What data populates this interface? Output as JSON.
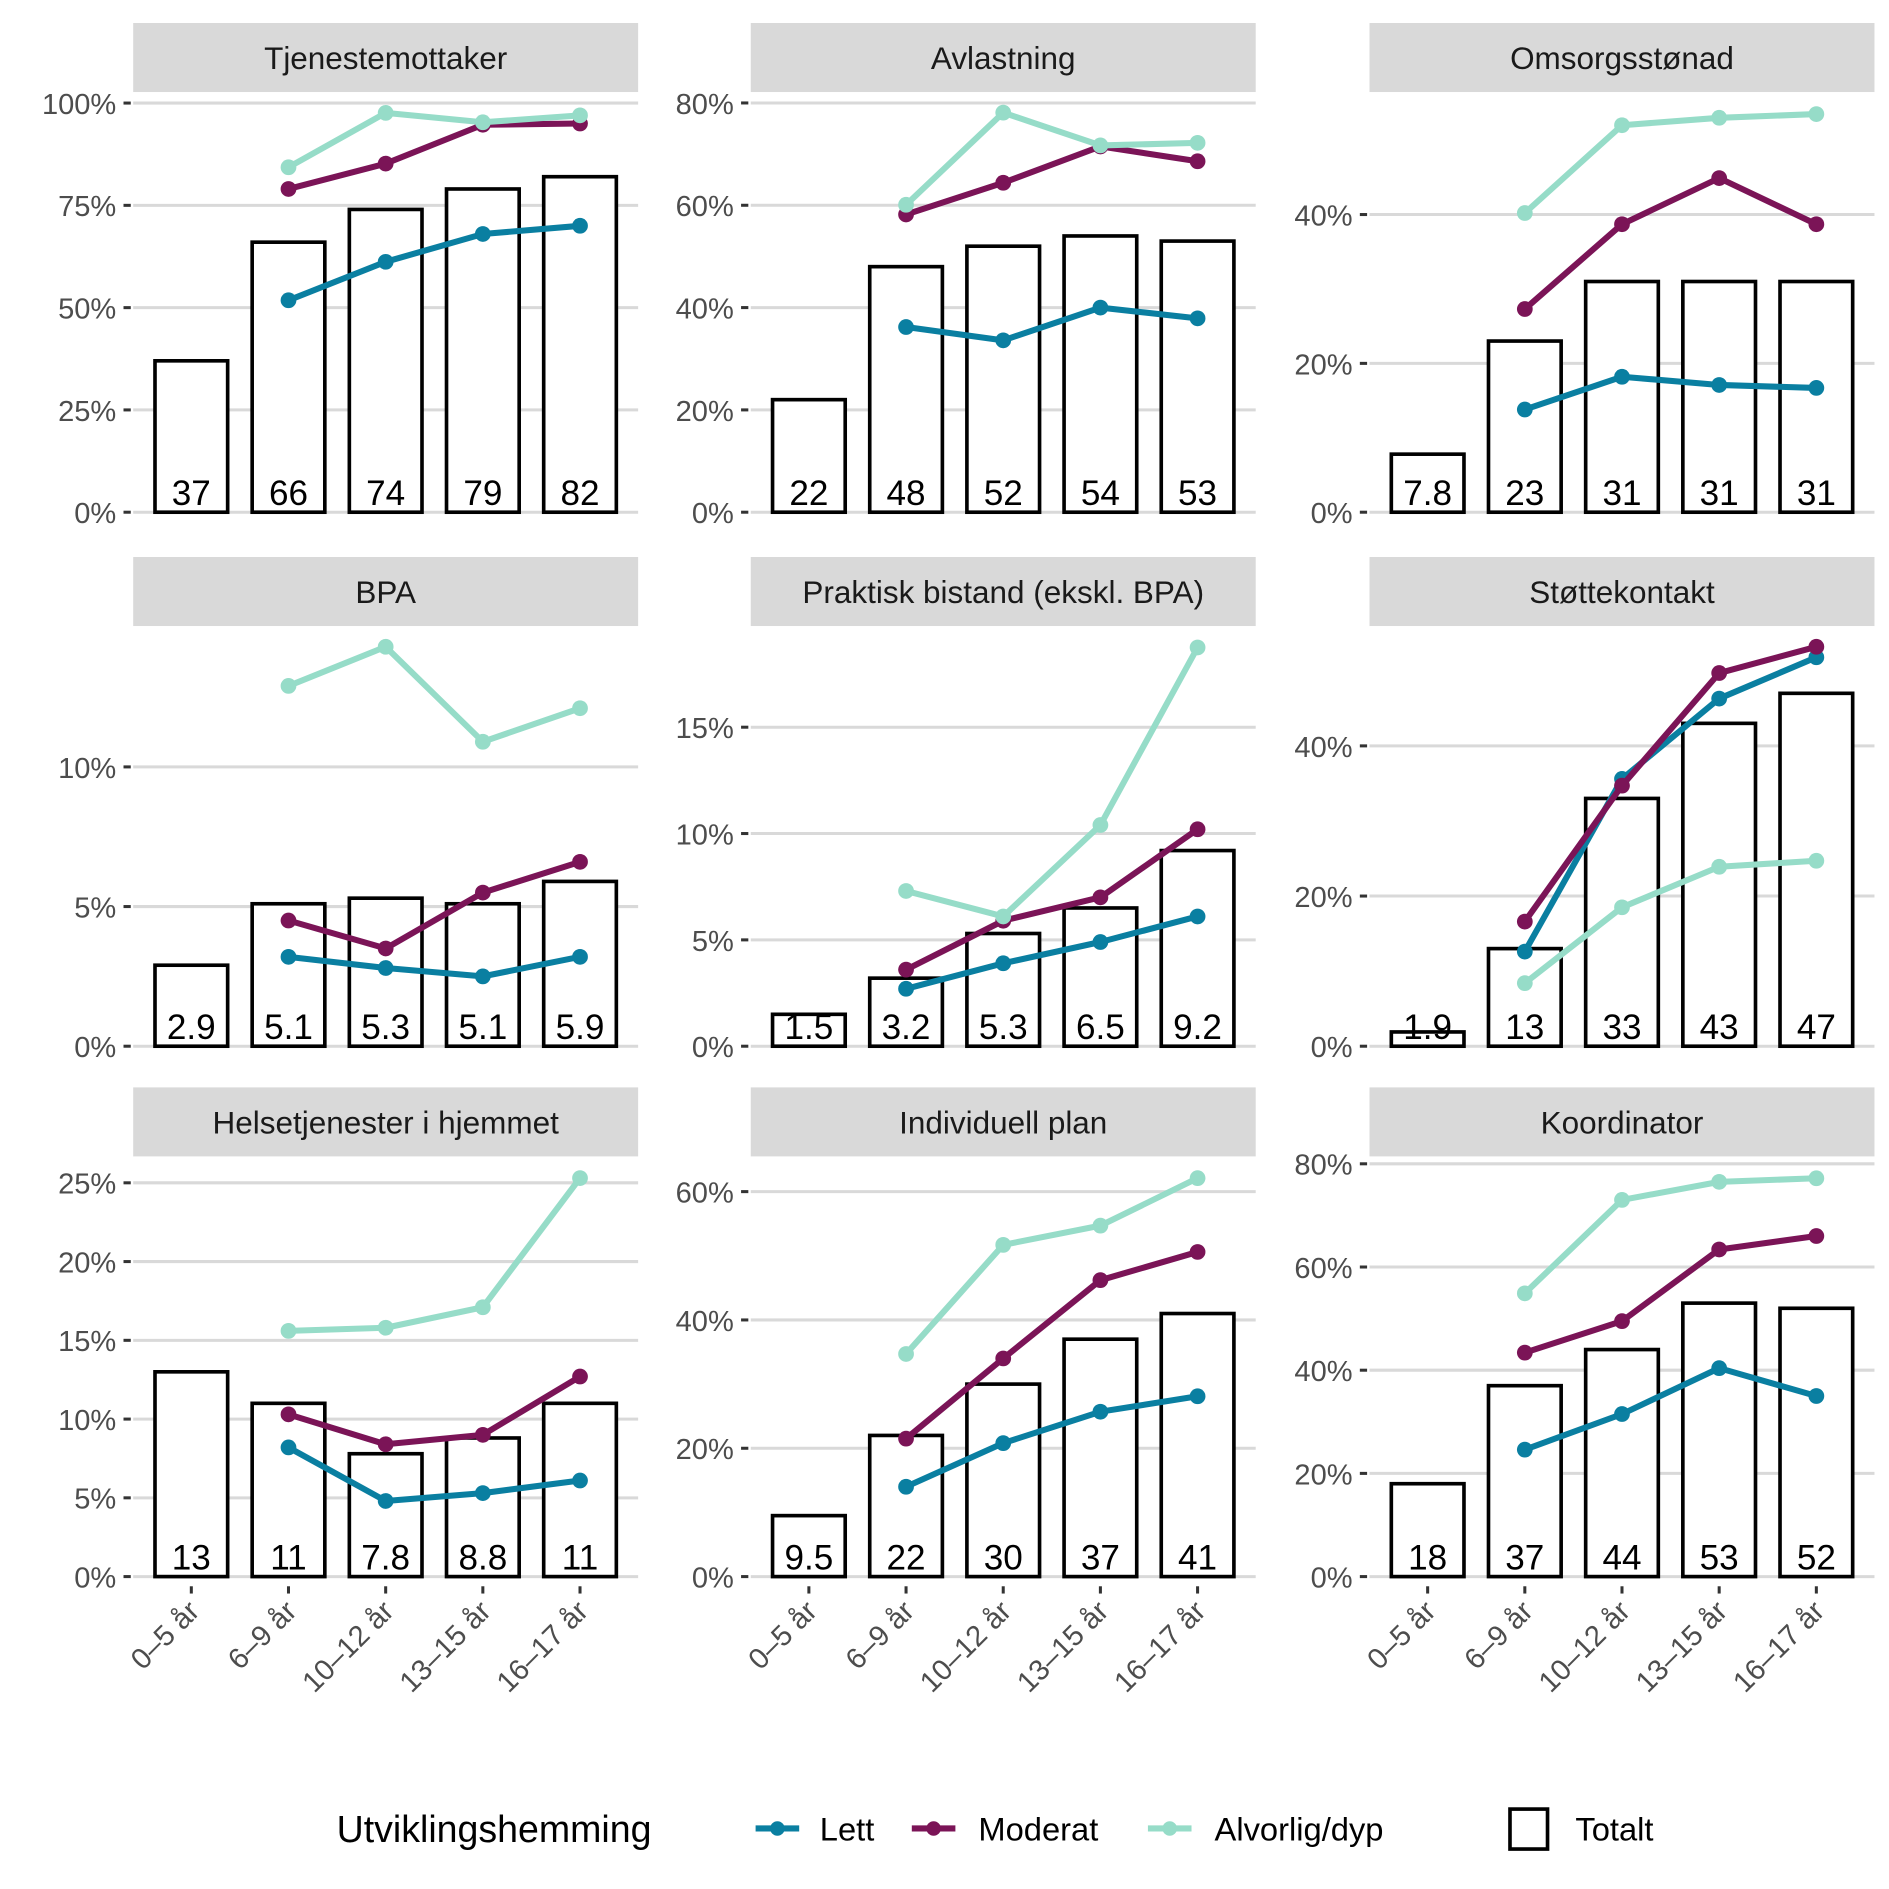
{
  "colors": {
    "Lett": "#0a7fa1",
    "Moderat": "#7b1457",
    "Alvorlig/dyp": "#96dcc8",
    "grid": "#d9d9d9",
    "strip": "#d9d9d9"
  },
  "legend": {
    "title": "Utviklingshemming",
    "items": [
      "Lett",
      "Moderat",
      "Alvorlig/dyp"
    ],
    "bar_item": "Totalt",
    "placement": "bottom"
  },
  "chart_data": [
    {
      "type": "bar+line",
      "title": "Tjenestemottaker",
      "categories": [
        "0–5 år",
        "6–9 år",
        "10–12 år",
        "13–15 år",
        "16–17 år"
      ],
      "yticks": [
        "0%",
        "25%",
        "50%",
        "75%",
        "100%"
      ],
      "ytick_values": [
        0,
        25,
        50,
        75,
        100
      ],
      "ylim": [
        0,
        102.4
      ],
      "bars": {
        "name": "Totalt",
        "values": [
          37,
          66,
          74,
          79,
          82
        ],
        "labels": [
          "37",
          "66",
          "74",
          "79",
          "82"
        ]
      },
      "series": [
        {
          "name": "Lett",
          "values": [
            null,
            51.8,
            61.2,
            68,
            70
          ]
        },
        {
          "name": "Moderat",
          "values": [
            null,
            79,
            85.2,
            94.7,
            95
          ]
        },
        {
          "name": "Alvorlig/dyp",
          "values": [
            null,
            84.3,
            97.6,
            95.3,
            97
          ]
        }
      ]
    },
    {
      "type": "bar+line",
      "title": "Avlastning",
      "categories": [
        "0–5 år",
        "6–9 år",
        "10–12 år",
        "13–15 år",
        "16–17 år"
      ],
      "yticks": [
        "0%",
        "20%",
        "40%",
        "60%",
        "80%"
      ],
      "ytick_values": [
        0,
        20,
        40,
        60,
        80
      ],
      "ylim": [
        0,
        81.9
      ],
      "bars": {
        "name": "Totalt",
        "values": [
          22,
          48,
          52,
          54,
          53
        ],
        "labels": [
          "22",
          "48",
          "52",
          "54",
          "53"
        ]
      },
      "series": [
        {
          "name": "Lett",
          "values": [
            null,
            36.2,
            33.6,
            40,
            37.9
          ]
        },
        {
          "name": "Moderat",
          "values": [
            null,
            58.2,
            64.4,
            71.5,
            68.6
          ]
        },
        {
          "name": "Alvorlig/dyp",
          "values": [
            null,
            60.1,
            78.1,
            71.7,
            72.2
          ]
        }
      ]
    },
    {
      "type": "bar+line",
      "title": "Omsorgsstønad",
      "categories": [
        "0–5 år",
        "6–9 år",
        "10–12 år",
        "13–15 år",
        "16–17 år"
      ],
      "yticks": [
        "0%",
        "20%",
        "40%"
      ],
      "ytick_values": [
        0,
        20,
        40
      ],
      "ylim": [
        0,
        56.3
      ],
      "bars": {
        "name": "Totalt",
        "values": [
          7.8,
          23,
          31,
          31,
          31
        ],
        "labels": [
          "7.8",
          "23",
          "31",
          "31",
          "31"
        ]
      },
      "series": [
        {
          "name": "Lett",
          "values": [
            null,
            13.8,
            18.2,
            17.1,
            16.7
          ]
        },
        {
          "name": "Moderat",
          "values": [
            null,
            27.3,
            38.7,
            44.9,
            38.7
          ]
        },
        {
          "name": "Alvorlig/dyp",
          "values": [
            null,
            40.2,
            52,
            53,
            53.5
          ]
        }
      ]
    },
    {
      "type": "bar+line",
      "title": "BPA",
      "categories": [
        "0–5 år",
        "6–9 år",
        "10–12 år",
        "13–15 år",
        "16–17 år"
      ],
      "yticks": [
        "0%",
        "5%",
        "10%"
      ],
      "ytick_values": [
        0,
        5,
        10
      ],
      "ylim": [
        0,
        15
      ],
      "bars": {
        "name": "Totalt",
        "values": [
          2.9,
          5.1,
          5.3,
          5.1,
          5.9
        ],
        "labels": [
          "2.9",
          "5.1",
          "5.3",
          "5.1",
          "5.9"
        ]
      },
      "series": [
        {
          "name": "Lett",
          "values": [
            null,
            3.2,
            2.8,
            2.5,
            3.2
          ]
        },
        {
          "name": "Moderat",
          "values": [
            null,
            4.5,
            3.5,
            5.5,
            6.6
          ]
        },
        {
          "name": "Alvorlig/dyp",
          "values": [
            null,
            12.9,
            14.3,
            10.9,
            12.1
          ]
        }
      ]
    },
    {
      "type": "bar+line",
      "title": "Praktisk bistand (ekskl. BPA)",
      "categories": [
        "0–5 år",
        "6–9 år",
        "10–12 år",
        "13–15 år",
        "16–17 år"
      ],
      "yticks": [
        "0%",
        "5%",
        "10%",
        "15%"
      ],
      "ytick_values": [
        0,
        5,
        10,
        15
      ],
      "ylim": [
        0,
        19.7
      ],
      "bars": {
        "name": "Totalt",
        "values": [
          1.5,
          3.2,
          5.3,
          6.5,
          9.2
        ],
        "labels": [
          "1.5",
          "3.2",
          "5.3",
          "6.5",
          "9.2"
        ]
      },
      "series": [
        {
          "name": "Lett",
          "values": [
            null,
            2.7,
            3.9,
            4.9,
            6.1
          ]
        },
        {
          "name": "Moderat",
          "values": [
            null,
            3.6,
            5.9,
            7.0,
            10.2
          ]
        },
        {
          "name": "Alvorlig/dyp",
          "values": [
            null,
            7.3,
            6.1,
            10.4,
            18.75
          ]
        }
      ]
    },
    {
      "type": "bar+line",
      "title": "Støttekontakt",
      "categories": [
        "0–5 år",
        "6–9 år",
        "10–12 år",
        "13–15 år",
        "16–17 år"
      ],
      "yticks": [
        "0%",
        "20%",
        "40%"
      ],
      "ytick_values": [
        0,
        20,
        40
      ],
      "ylim": [
        0,
        55.8
      ],
      "bars": {
        "name": "Totalt",
        "values": [
          1.9,
          13,
          33,
          43,
          47
        ],
        "labels": [
          "1.9",
          "13",
          "33",
          "43",
          "47"
        ]
      },
      "series": [
        {
          "name": "Lett",
          "values": [
            null,
            12.6,
            35.6,
            46.3,
            51.8
          ]
        },
        {
          "name": "Moderat",
          "values": [
            null,
            16.6,
            34.7,
            49.7,
            53.2
          ]
        },
        {
          "name": "Alvorlig/dyp",
          "values": [
            null,
            8.4,
            18.5,
            23.9,
            24.7
          ]
        }
      ]
    },
    {
      "type": "bar+line",
      "title": "Helsetjenester i hjemmet",
      "categories": [
        "0–5 år",
        "6–9 år",
        "10–12 år",
        "13–15 år",
        "16–17 år"
      ],
      "yticks": [
        "0%",
        "5%",
        "10%",
        "15%",
        "20%",
        "25%"
      ],
      "ytick_values": [
        0,
        5,
        10,
        15,
        20,
        25
      ],
      "ylim": [
        0,
        26.6
      ],
      "bars": {
        "name": "Totalt",
        "values": [
          13,
          11,
          7.8,
          8.8,
          11
        ],
        "labels": [
          "13",
          "11",
          "7.8",
          "8.8",
          "11"
        ]
      },
      "series": [
        {
          "name": "Lett",
          "values": [
            null,
            8.2,
            4.8,
            5.3,
            6.1
          ]
        },
        {
          "name": "Moderat",
          "values": [
            null,
            10.3,
            8.4,
            9,
            12.7
          ]
        },
        {
          "name": "Alvorlig/dyp",
          "values": [
            null,
            15.6,
            15.8,
            17.1,
            25.3
          ]
        }
      ]
    },
    {
      "type": "bar+line",
      "title": "Individuell plan",
      "categories": [
        "0–5 år",
        "6–9 år",
        "10–12 år",
        "13–15 år",
        "16–17 år"
      ],
      "yticks": [
        "0%",
        "20%",
        "40%",
        "60%"
      ],
      "ytick_values": [
        0,
        20,
        40,
        60
      ],
      "ylim": [
        0,
        65.3
      ],
      "bars": {
        "name": "Totalt",
        "values": [
          9.5,
          22,
          30,
          37,
          41
        ],
        "labels": [
          "9.5",
          "22",
          "30",
          "37",
          "41"
        ]
      },
      "series": [
        {
          "name": "Lett",
          "values": [
            null,
            14,
            20.8,
            25.7,
            28.1
          ]
        },
        {
          "name": "Moderat",
          "values": [
            null,
            21.5,
            34,
            46.2,
            50.6
          ]
        },
        {
          "name": "Alvorlig/dyp",
          "values": [
            null,
            34.7,
            51.7,
            54.7,
            62.1
          ]
        }
      ]
    },
    {
      "type": "bar+line",
      "title": "Koordinator",
      "categories": [
        "0–5 år",
        "6–9 år",
        "10–12 år",
        "13–15 år",
        "16–17 år"
      ],
      "yticks": [
        "0%",
        "20%",
        "40%",
        "60%",
        "80%"
      ],
      "ytick_values": [
        0,
        20,
        40,
        60,
        80
      ],
      "ylim": [
        0,
        81.2
      ],
      "bars": {
        "name": "Totalt",
        "values": [
          18,
          37,
          44,
          53,
          52
        ],
        "labels": [
          "18",
          "37",
          "44",
          "53",
          "52"
        ]
      },
      "series": [
        {
          "name": "Lett",
          "values": [
            null,
            24.6,
            31.5,
            40.4,
            35
          ]
        },
        {
          "name": "Moderat",
          "values": [
            null,
            43.4,
            49.5,
            63.4,
            66
          ]
        },
        {
          "name": "Alvorlig/dyp",
          "values": [
            null,
            54.9,
            73,
            76.5,
            77.2
          ]
        }
      ]
    }
  ]
}
